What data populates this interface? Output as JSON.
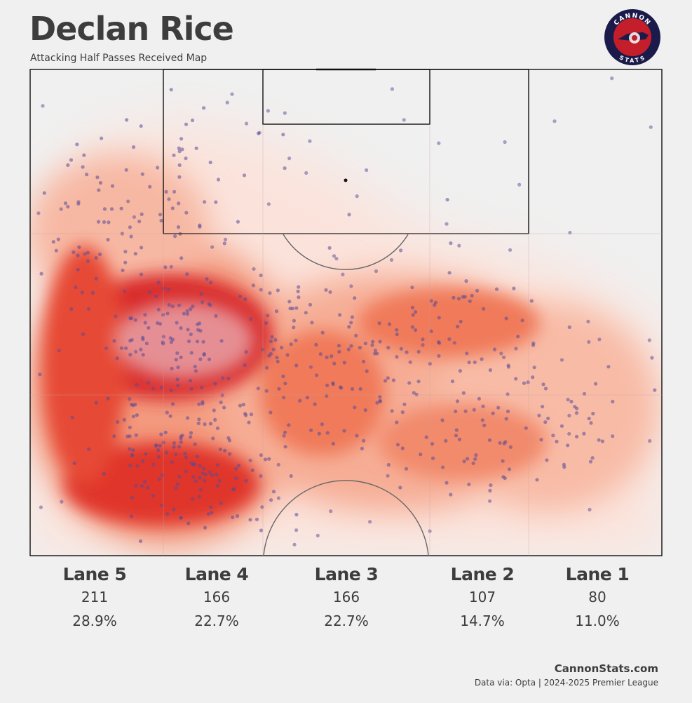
{
  "header": {
    "title": "Declan Rice",
    "subtitle": "Attacking Half Passes Received Map"
  },
  "logo": {
    "top_text": "CANNON",
    "bottom_text": "STATS",
    "colors": {
      "ring": "#1b1b4b",
      "fill": "#c41e2a",
      "text": "#ffffff"
    }
  },
  "chart_data": {
    "type": "heatmap",
    "description_type": "kde-density-with-scatter",
    "pitch": "attacking-half",
    "grid": true,
    "colors": {
      "density_low": "#fbe6e0",
      "density_mid": "#f07a5a",
      "density_high": "#c8141e",
      "points": "#5a4a96"
    },
    "hotspots": [
      {
        "x": 23,
        "y": 55,
        "intensity": 1.0
      },
      {
        "x": 22,
        "y": 78,
        "intensity": 0.85
      },
      {
        "x": 12,
        "y": 35,
        "intensity": 0.6
      },
      {
        "x": 30,
        "y": 82,
        "intensity": 0.55
      },
      {
        "x": 40,
        "y": 55,
        "intensity": 0.55
      },
      {
        "x": 52,
        "y": 62,
        "intensity": 0.45
      },
      {
        "x": 66,
        "y": 52,
        "intensity": 0.5
      },
      {
        "x": 68,
        "y": 75,
        "intensity": 0.45
      },
      {
        "x": 84,
        "y": 72,
        "intensity": 0.35
      },
      {
        "x": 25,
        "y": 20,
        "intensity": 0.25
      }
    ],
    "lanes": [
      {
        "name": "Lane 5",
        "count": "211",
        "pct": "28.9%"
      },
      {
        "name": "Lane 4",
        "count": "166",
        "pct": "22.7%"
      },
      {
        "name": "Lane 3",
        "count": "166",
        "pct": "22.7%"
      },
      {
        "name": "Lane 2",
        "count": "107",
        "pct": "14.7%"
      },
      {
        "name": "Lane 1",
        "count": "80",
        "pct": "11.0%"
      }
    ]
  },
  "footer": {
    "site": "CannonStats.com",
    "source": "Data via: Opta | 2024-2025 Premier League"
  }
}
